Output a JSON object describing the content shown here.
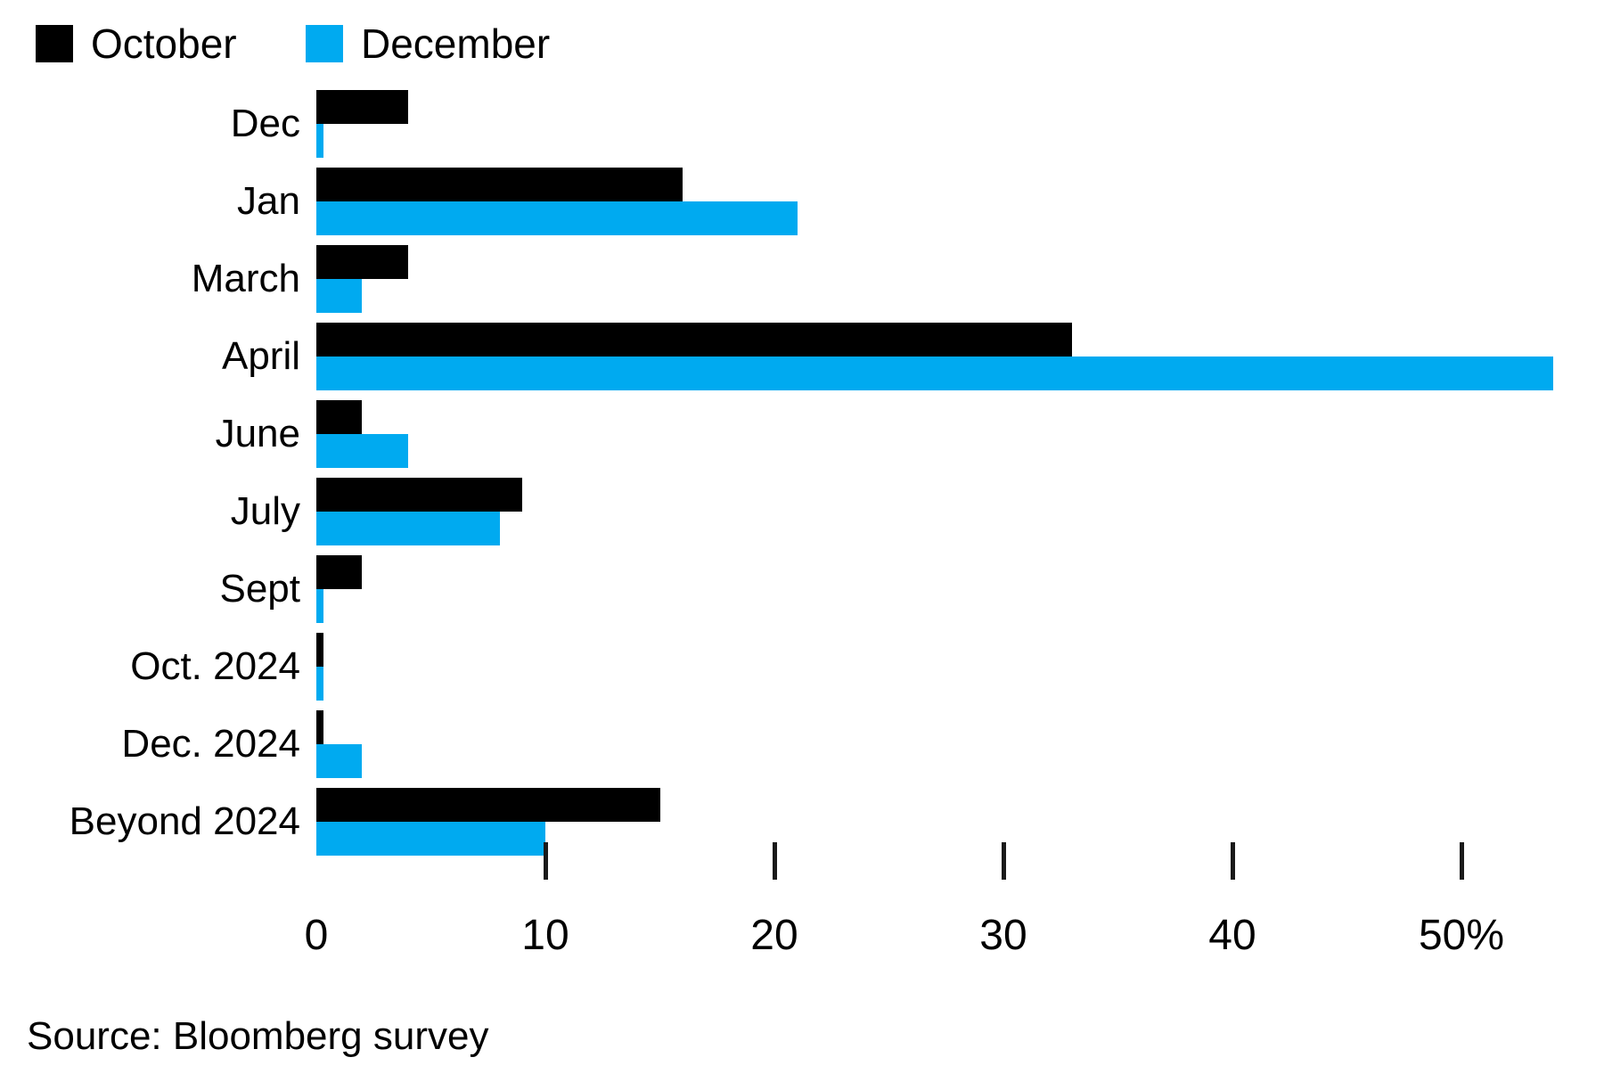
{
  "legend": {
    "series": [
      {
        "label": "October",
        "color": "#000000"
      },
      {
        "label": "December",
        "color": "#00AAF0"
      }
    ]
  },
  "source": "Source: Bloomberg survey",
  "chart_data": {
    "type": "bar",
    "orientation": "horizontal",
    "title": "",
    "xlabel": "",
    "ylabel": "",
    "categories": [
      "Dec",
      "Jan",
      "March",
      "April",
      "June",
      "July",
      "Sept",
      "Oct. 2024",
      "Dec. 2024",
      "Beyond 2024"
    ],
    "series": [
      {
        "name": "October",
        "color": "#000000",
        "values": [
          4,
          16,
          4,
          33,
          2,
          9,
          2,
          0.3,
          0.3,
          15
        ]
      },
      {
        "name": "December",
        "color": "#00AAF0",
        "values": [
          0.3,
          21,
          2,
          54,
          4,
          8,
          0.3,
          0.3,
          2,
          10
        ]
      }
    ],
    "x_ticks": [
      0,
      10,
      20,
      30,
      40,
      50
    ],
    "x_tick_labels": [
      "0",
      "10",
      "20",
      "30",
      "40",
      "50%"
    ],
    "xlim": [
      0,
      56.2
    ],
    "unit": "%",
    "grid": false,
    "legend_position": "top-left"
  }
}
